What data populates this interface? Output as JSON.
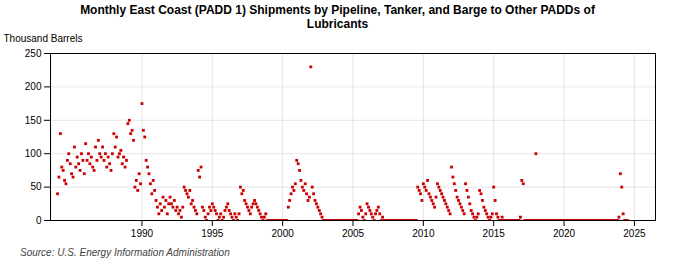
{
  "chart_data": {
    "type": "scatter",
    "title": "Monthly East Coast (PADD 1) Shipments by Pipeline, Tanker, and Barge to Other PADDs of\nLubricants",
    "ylabel": "Thousand Barrels",
    "source": "Source: U.S. Energy Information Administration",
    "color": "#cc0000",
    "marker": "square",
    "grid": true,
    "xlim": [
      1983.5,
      2026.5
    ],
    "ylim": [
      0,
      250
    ],
    "xticks": [
      1990,
      1995,
      2000,
      2005,
      2010,
      2015,
      2020,
      2025
    ],
    "yticks": [
      0,
      50,
      100,
      150,
      200,
      250
    ],
    "x": [
      1984.0,
      1984.1,
      1984.2,
      1984.3,
      1984.4,
      1984.5,
      1984.6,
      1984.7,
      1984.8,
      1984.9,
      1985.0,
      1985.1,
      1985.2,
      1985.3,
      1985.4,
      1985.5,
      1985.6,
      1985.7,
      1985.8,
      1985.9,
      1986.0,
      1986.1,
      1986.2,
      1986.3,
      1986.4,
      1986.5,
      1986.6,
      1986.7,
      1986.8,
      1986.9,
      1987.0,
      1987.1,
      1987.2,
      1987.3,
      1987.4,
      1987.5,
      1987.6,
      1987.7,
      1987.8,
      1987.9,
      1988.0,
      1988.1,
      1988.2,
      1988.3,
      1988.4,
      1988.5,
      1988.6,
      1988.7,
      1988.8,
      1988.9,
      1989.0,
      1989.1,
      1989.2,
      1989.3,
      1989.4,
      1989.5,
      1989.6,
      1989.7,
      1989.8,
      1989.9,
      1990.0,
      1990.1,
      1990.2,
      1990.3,
      1990.4,
      1990.5,
      1990.6,
      1990.7,
      1990.8,
      1990.9,
      1991.0,
      1991.1,
      1991.2,
      1991.3,
      1991.4,
      1991.5,
      1991.6,
      1991.7,
      1991.8,
      1991.9,
      1992.0,
      1992.1,
      1992.2,
      1992.3,
      1992.4,
      1992.5,
      1992.6,
      1992.7,
      1992.8,
      1992.9,
      1993.0,
      1993.1,
      1993.2,
      1993.3,
      1993.4,
      1993.5,
      1993.6,
      1993.7,
      1993.8,
      1993.9,
      1994.0,
      1994.1,
      1994.2,
      1994.3,
      1994.4,
      1994.5,
      1994.6,
      1994.7,
      1994.8,
      1994.9,
      1995.0,
      1995.1,
      1995.2,
      1995.3,
      1995.4,
      1995.5,
      1995.6,
      1995.7,
      1995.8,
      1995.9,
      1996.0,
      1996.1,
      1996.2,
      1996.3,
      1996.4,
      1996.5,
      1996.6,
      1996.7,
      1996.8,
      1996.9,
      1997.0,
      1997.1,
      1997.2,
      1997.3,
      1997.4,
      1997.5,
      1997.6,
      1997.7,
      1997.8,
      1997.9,
      1998.0,
      1998.1,
      1998.2,
      1998.3,
      1998.4,
      1998.5,
      1998.6,
      1998.7,
      1998.8,
      1998.9,
      1999.0,
      1999.1,
      1999.2,
      1999.3,
      1999.4,
      1999.5,
      1999.6,
      1999.7,
      1999.8,
      1999.9,
      2000.0,
      2000.1,
      2000.2,
      2000.3,
      2000.4,
      2000.5,
      2000.6,
      2000.7,
      2000.8,
      2000.9,
      2001.0,
      2001.1,
      2001.2,
      2001.3,
      2001.4,
      2001.5,
      2001.6,
      2001.7,
      2001.8,
      2001.9,
      2002.0,
      2002.1,
      2002.2,
      2002.3,
      2002.4,
      2002.5,
      2002.6,
      2002.7,
      2002.8,
      2002.9,
      2003.0,
      2003.1,
      2003.2,
      2003.3,
      2003.4,
      2003.5,
      2003.6,
      2003.7,
      2003.8,
      2003.9,
      2004.0,
      2004.1,
      2004.2,
      2004.3,
      2004.4,
      2004.5,
      2004.6,
      2004.7,
      2004.8,
      2004.9,
      2005.0,
      2005.1,
      2005.2,
      2005.3,
      2005.4,
      2005.5,
      2005.6,
      2005.7,
      2005.8,
      2005.9,
      2006.0,
      2006.1,
      2006.2,
      2006.3,
      2006.4,
      2006.5,
      2006.6,
      2006.7,
      2006.8,
      2006.9,
      2007.0,
      2007.1,
      2007.2,
      2007.3,
      2007.4,
      2007.5,
      2007.6,
      2007.7,
      2007.8,
      2007.9,
      2008.0,
      2008.1,
      2008.2,
      2008.3,
      2008.4,
      2008.5,
      2008.6,
      2008.7,
      2008.8,
      2008.9,
      2009.0,
      2009.1,
      2009.2,
      2009.3,
      2009.4,
      2009.5,
      2009.6,
      2009.7,
      2009.8,
      2009.9,
      2010.0,
      2010.1,
      2010.2,
      2010.3,
      2010.4,
      2010.5,
      2010.6,
      2010.7,
      2010.8,
      2010.9,
      2011.0,
      2011.1,
      2011.2,
      2011.3,
      2011.4,
      2011.5,
      2011.6,
      2011.7,
      2011.8,
      2011.9,
      2012.0,
      2012.1,
      2012.2,
      2012.3,
      2012.4,
      2012.5,
      2012.6,
      2012.7,
      2012.8,
      2012.9,
      2013.0,
      2013.1,
      2013.2,
      2013.3,
      2013.4,
      2013.5,
      2013.6,
      2013.7,
      2013.8,
      2013.9,
      2014.0,
      2014.1,
      2014.2,
      2014.3,
      2014.4,
      2014.5,
      2014.6,
      2014.7,
      2014.8,
      2014.9,
      2015.0,
      2015.1,
      2015.2,
      2015.3,
      2015.4,
      2015.5,
      2015.6,
      2015.7,
      2015.8,
      2015.9,
      2016.0,
      2016.1,
      2016.2,
      2016.3,
      2016.4,
      2016.5,
      2016.6,
      2016.7,
      2016.8,
      2016.9,
      2017.0,
      2017.1,
      2017.2,
      2017.3,
      2017.4,
      2017.5,
      2017.6,
      2017.7,
      2017.8,
      2017.9,
      2018.0,
      2018.1,
      2018.2,
      2018.3,
      2018.4,
      2018.5,
      2018.6,
      2018.7,
      2018.8,
      2018.9,
      2019.0,
      2019.1,
      2019.2,
      2019.3,
      2019.4,
      2019.5,
      2019.6,
      2019.7,
      2019.8,
      2019.9,
      2020.0,
      2020.1,
      2020.2,
      2020.3,
      2020.4,
      2020.5,
      2020.6,
      2020.7,
      2020.8,
      2020.9,
      2021.0,
      2021.1,
      2021.2,
      2021.3,
      2021.4,
      2021.5,
      2021.6,
      2021.7,
      2021.8,
      2021.9,
      2022.0,
      2022.1,
      2022.2,
      2022.3,
      2022.4,
      2022.5,
      2022.6,
      2022.7,
      2022.8,
      2022.9,
      2023.0,
      2023.1,
      2023.2,
      2023.3,
      2023.4,
      2023.5,
      2023.6,
      2023.7,
      2023.8,
      2023.9,
      2024.0,
      2024.1,
      2024.2,
      2024.3,
      2024.4,
      2024.5
    ],
    "values": [
      40,
      65,
      130,
      80,
      75,
      60,
      55,
      90,
      100,
      85,
      70,
      65,
      110,
      80,
      95,
      85,
      75,
      100,
      90,
      70,
      115,
      90,
      100,
      85,
      95,
      80,
      75,
      110,
      90,
      120,
      100,
      95,
      110,
      90,
      100,
      80,
      95,
      85,
      75,
      100,
      130,
      110,
      125,
      95,
      100,
      105,
      85,
      95,
      80,
      90,
      145,
      150,
      130,
      135,
      120,
      50,
      60,
      45,
      70,
      55,
      175,
      135,
      125,
      90,
      80,
      70,
      55,
      40,
      60,
      45,
      30,
      20,
      10,
      25,
      15,
      35,
      20,
      30,
      10,
      25,
      35,
      25,
      20,
      30,
      15,
      20,
      10,
      15,
      5,
      20,
      50,
      45,
      40,
      35,
      45,
      25,
      30,
      20,
      15,
      10,
      75,
      65,
      80,
      20,
      15,
      5,
      0,
      10,
      20,
      15,
      25,
      20,
      15,
      10,
      0,
      5,
      10,
      0,
      5,
      15,
      20,
      25,
      15,
      10,
      5,
      0,
      10,
      5,
      0,
      10,
      50,
      40,
      45,
      30,
      25,
      20,
      15,
      10,
      20,
      25,
      30,
      25,
      20,
      15,
      10,
      5,
      0,
      5,
      10,
      0,
      0,
      0,
      0,
      0,
      0,
      0,
      0,
      0,
      0,
      0,
      0,
      0,
      0,
      0,
      20,
      30,
      40,
      50,
      45,
      55,
      90,
      85,
      75,
      60,
      50,
      45,
      55,
      40,
      30,
      35,
      230,
      50,
      40,
      30,
      25,
      20,
      15,
      10,
      5,
      0,
      0,
      0,
      0,
      0,
      0,
      0,
      0,
      0,
      0,
      0,
      0,
      0,
      0,
      0,
      0,
      0,
      0,
      0,
      0,
      0,
      0,
      0,
      0,
      0,
      10,
      20,
      15,
      5,
      0,
      10,
      25,
      20,
      15,
      10,
      5,
      0,
      10,
      15,
      20,
      10,
      0,
      5,
      0,
      0,
      0,
      0,
      0,
      0,
      0,
      0,
      0,
      0,
      0,
      0,
      0,
      0,
      0,
      0,
      0,
      0,
      0,
      0,
      0,
      0,
      0,
      0,
      50,
      45,
      40,
      30,
      55,
      50,
      45,
      60,
      40,
      35,
      30,
      25,
      20,
      35,
      55,
      50,
      45,
      40,
      35,
      30,
      25,
      20,
      15,
      10,
      80,
      65,
      55,
      45,
      35,
      30,
      25,
      20,
      15,
      10,
      55,
      45,
      35,
      25,
      15,
      10,
      5,
      0,
      5,
      10,
      45,
      40,
      30,
      20,
      15,
      10,
      5,
      0,
      5,
      10,
      50,
      30,
      10,
      5,
      0,
      0,
      5,
      0,
      0,
      0,
      0,
      0,
      0,
      0,
      0,
      0,
      0,
      0,
      0,
      5,
      60,
      55,
      0,
      0,
      0,
      0,
      0,
      0,
      0,
      0,
      100,
      0,
      0,
      0,
      0,
      0,
      0,
      0,
      0,
      0,
      0,
      0,
      0,
      0,
      0,
      0,
      0,
      0,
      0,
      0,
      0,
      0,
      0,
      0,
      0,
      0,
      0,
      0,
      0,
      0,
      0,
      0,
      0,
      0,
      0,
      0,
      0,
      0,
      0,
      0,
      0,
      0,
      0,
      0,
      0,
      0,
      0,
      0,
      0,
      0,
      0,
      0,
      0,
      0,
      0,
      0,
      0,
      0,
      0,
      5,
      70,
      50,
      10,
      0,
      0,
      0
    ]
  }
}
